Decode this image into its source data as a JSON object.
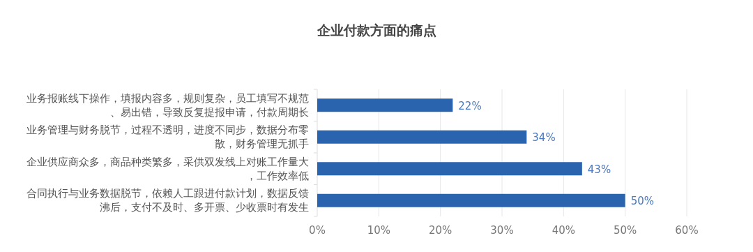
{
  "chart_data": {
    "type": "bar",
    "orientation": "horizontal",
    "title": "企业付款方面的痛点",
    "categories": [
      "业务报账线下操作，填报内容多，规则复杂，员工填写不规范、易出错，导致反复提报申请，付款周期长",
      "业务管理与财务脱节，过程不透明，进度不同步，数据分布零散，财务管理无抓手",
      "企业供应商众多，商品种类繁多，采供双发线上对账工作量大，工作效率低",
      "合同执行与业务数据脱节，依赖人工跟进付款计划，数据反馈沸后，支付不及时、多开票、少收票时有发生"
    ],
    "values": [
      22,
      34,
      43,
      50
    ],
    "color": "#2a63ae",
    "value_labels": [
      "22%",
      "34%",
      "43%",
      "50%"
    ],
    "xlim": [
      0,
      60
    ],
    "xticks": [
      {
        "value": 0,
        "label": "0%"
      },
      {
        "value": 10,
        "label": "10%"
      },
      {
        "value": 20,
        "label": "20%"
      },
      {
        "value": 30,
        "label": "30%"
      },
      {
        "value": 40,
        "label": "40%"
      },
      {
        "value": 50,
        "label": "50%"
      },
      {
        "value": 60,
        "label": "60%"
      }
    ],
    "grid": "x"
  }
}
